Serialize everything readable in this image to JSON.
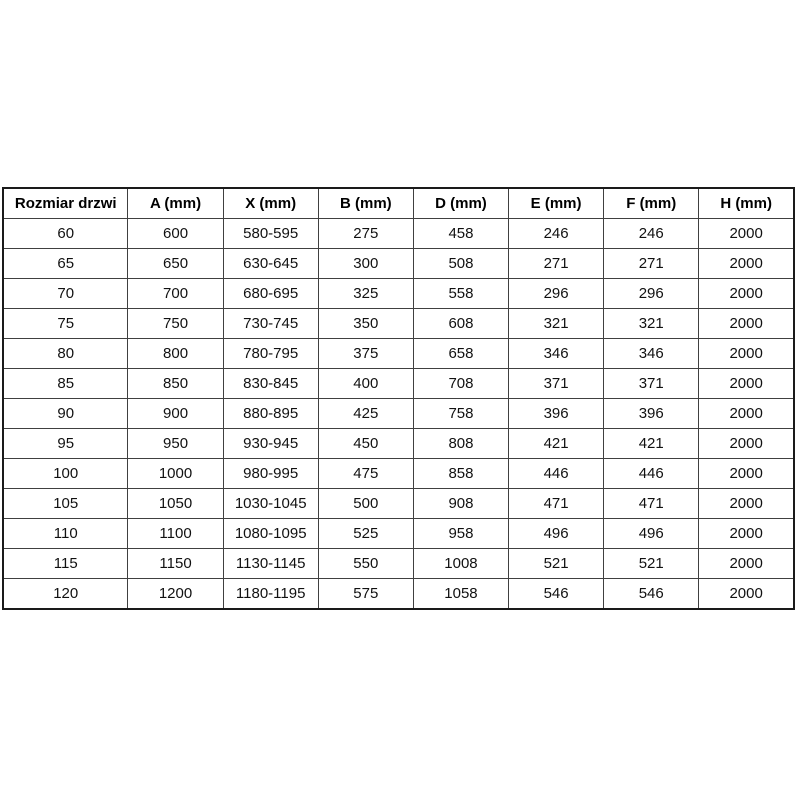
{
  "table": {
    "name": "door-size-dimensions",
    "headers": [
      "Rozmiar drzwi",
      "A (mm)",
      "X (mm)",
      "B (mm)",
      "D (mm)",
      "E (mm)",
      "F (mm)",
      "H (mm)"
    ],
    "rows": [
      [
        "60",
        "600",
        "580-595",
        "275",
        "458",
        "246",
        "246",
        "2000"
      ],
      [
        "65",
        "650",
        "630-645",
        "300",
        "508",
        "271",
        "271",
        "2000"
      ],
      [
        "70",
        "700",
        "680-695",
        "325",
        "558",
        "296",
        "296",
        "2000"
      ],
      [
        "75",
        "750",
        "730-745",
        "350",
        "608",
        "321",
        "321",
        "2000"
      ],
      [
        "80",
        "800",
        "780-795",
        "375",
        "658",
        "346",
        "346",
        "2000"
      ],
      [
        "85",
        "850",
        "830-845",
        "400",
        "708",
        "371",
        "371",
        "2000"
      ],
      [
        "90",
        "900",
        "880-895",
        "425",
        "758",
        "396",
        "396",
        "2000"
      ],
      [
        "95",
        "950",
        "930-945",
        "450",
        "808",
        "421",
        "421",
        "2000"
      ],
      [
        "100",
        "1000",
        "980-995",
        "475",
        "858",
        "446",
        "446",
        "2000"
      ],
      [
        "105",
        "1050",
        "1030-1045",
        "500",
        "908",
        "471",
        "471",
        "2000"
      ],
      [
        "110",
        "1100",
        "1080-1095",
        "525",
        "958",
        "496",
        "496",
        "2000"
      ],
      [
        "115",
        "1150",
        "1130-1145",
        "550",
        "1008",
        "521",
        "521",
        "2000"
      ],
      [
        "120",
        "1200",
        "1180-1195",
        "575",
        "1058",
        "546",
        "546",
        "2000"
      ]
    ],
    "colors": {
      "outer_border": "#1a1a1a",
      "inner_border": "#404040",
      "text": "#000000",
      "background": "#ffffff"
    }
  }
}
